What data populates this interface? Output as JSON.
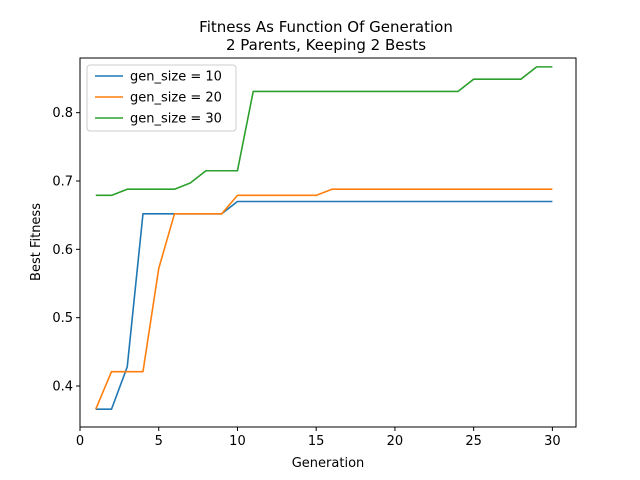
{
  "chart_data": {
    "type": "line",
    "title": "Fitness As Function Of Generation",
    "subtitle": "2 Parents, Keeping 2 Bests",
    "xlabel": "Generation",
    "ylabel": "Best Fitness",
    "xlim": [
      0,
      31.5
    ],
    "ylim": [
      0.34,
      0.88
    ],
    "xticks": [
      0,
      5,
      10,
      15,
      20,
      25,
      30
    ],
    "yticks": [
      0.4,
      0.5,
      0.6,
      0.7,
      0.8
    ],
    "legend_position": "top-left",
    "grid": false,
    "x": [
      1,
      2,
      3,
      4,
      5,
      6,
      7,
      8,
      9,
      10,
      11,
      12,
      13,
      14,
      15,
      16,
      17,
      18,
      19,
      20,
      21,
      22,
      23,
      24,
      25,
      26,
      27,
      28,
      29,
      30
    ],
    "series": [
      {
        "name": "gen_size = 10",
        "color": "#1f77b4",
        "values": [
          0.366,
          0.366,
          0.428,
          0.652,
          0.652,
          0.652,
          0.652,
          0.652,
          0.652,
          0.67,
          0.67,
          0.67,
          0.67,
          0.67,
          0.67,
          0.67,
          0.67,
          0.67,
          0.67,
          0.67,
          0.67,
          0.67,
          0.67,
          0.67,
          0.67,
          0.67,
          0.67,
          0.67,
          0.67,
          0.67
        ]
      },
      {
        "name": "gen_size = 20",
        "color": "#ff7f0e",
        "values": [
          0.366,
          0.421,
          0.421,
          0.421,
          0.572,
          0.652,
          0.652,
          0.652,
          0.652,
          0.679,
          0.679,
          0.679,
          0.679,
          0.679,
          0.679,
          0.688,
          0.688,
          0.688,
          0.688,
          0.688,
          0.688,
          0.688,
          0.688,
          0.688,
          0.688,
          0.688,
          0.688,
          0.688,
          0.688,
          0.688
        ]
      },
      {
        "name": "gen_size = 30",
        "color": "#2ca02c",
        "values": [
          0.679,
          0.679,
          0.688,
          0.688,
          0.688,
          0.688,
          0.697,
          0.715,
          0.715,
          0.715,
          0.831,
          0.831,
          0.831,
          0.831,
          0.831,
          0.831,
          0.831,
          0.831,
          0.831,
          0.831,
          0.831,
          0.831,
          0.831,
          0.831,
          0.849,
          0.849,
          0.849,
          0.849,
          0.867,
          0.867
        ]
      }
    ]
  }
}
